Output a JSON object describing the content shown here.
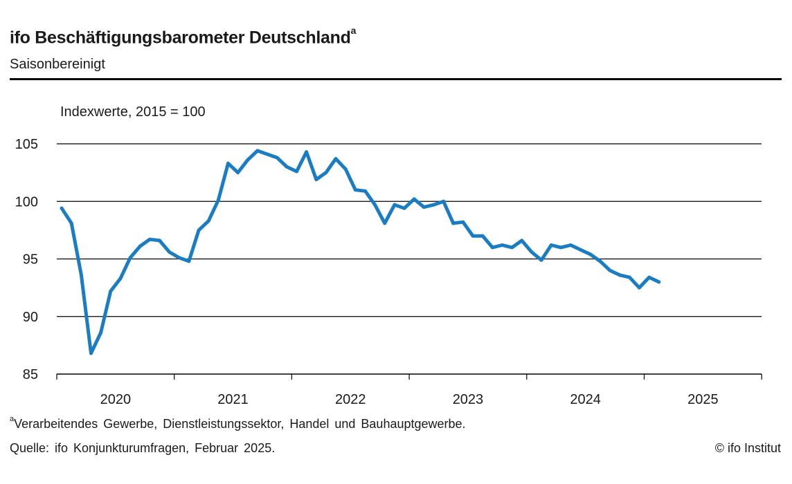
{
  "header": {
    "title": "ifo Beschäftigungsbarometer Deutschland",
    "title_marker": "a",
    "subtitle": "Saisonbereinigt"
  },
  "chart_data": {
    "type": "line",
    "unit_label": "Indexwerte, 2015 = 100",
    "ylim": [
      85,
      105
    ],
    "yticks": [
      85,
      90,
      95,
      100,
      105
    ],
    "year_labels": [
      "2020",
      "2021",
      "2022",
      "2023",
      "2024",
      "2025"
    ],
    "x_start": "2020-01",
    "grid": true,
    "line_color": "#1a7dc4",
    "series": [
      {
        "values": [
          99.4,
          98.1,
          93.6,
          86.8,
          88.6,
          92.2,
          93.3,
          95.1,
          96.1,
          96.7,
          96.6,
          95.6,
          95.1,
          94.8,
          97.5,
          98.3,
          100.1,
          103.3,
          102.5,
          103.6,
          104.4,
          104.1,
          103.8,
          103.0,
          102.6,
          104.3,
          101.9,
          102.5,
          103.7,
          102.8,
          101.0,
          100.9,
          99.7,
          98.1,
          99.7,
          99.4,
          100.2,
          99.5,
          99.7,
          100.0,
          98.1,
          98.2,
          97.0,
          97.0,
          96.0,
          96.2,
          96.0,
          96.6,
          95.6,
          94.9,
          96.2,
          96.0,
          96.2,
          95.8,
          95.4,
          94.8,
          94.0,
          93.6,
          93.4,
          92.5,
          93.4,
          93.0
        ]
      }
    ]
  },
  "footer": {
    "footnote_marker": "a",
    "footnote": "Verarbeitendes Gewerbe, Dienstleistungssektor, Handel und Bauhauptgewerbe.",
    "source": "Quelle: ifo Konjunkturumfragen, Februar 2025.",
    "copyright": "© ifo Institut"
  }
}
